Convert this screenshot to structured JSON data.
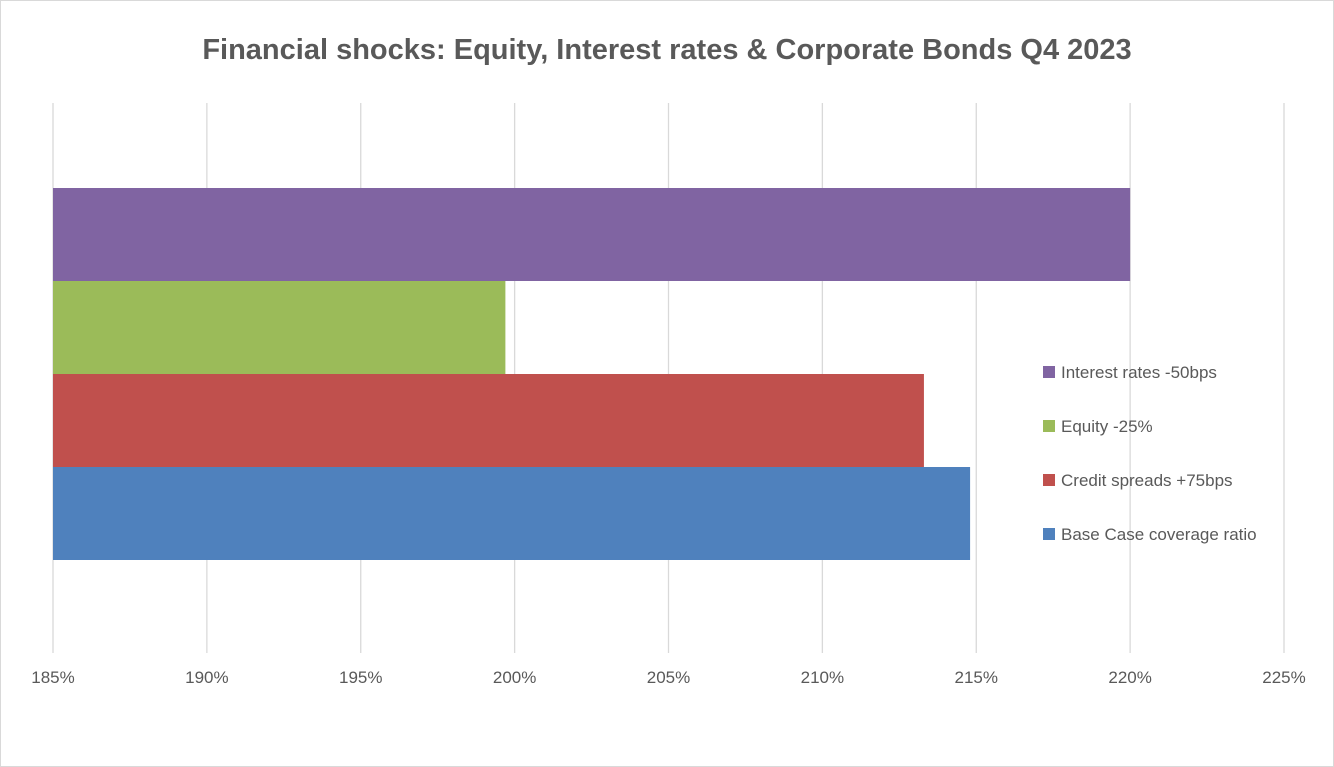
{
  "chart_data": {
    "type": "bar",
    "orientation": "horizontal",
    "title": "Financial shocks: Equity, Interest rates & Corporate Bonds Q4 2023",
    "xlabel": "",
    "ylabel": "",
    "xlim": [
      185,
      225
    ],
    "x_ticks": [
      "185%",
      "190%",
      "195%",
      "200%",
      "205%",
      "210%",
      "215%",
      "220%",
      "225%"
    ],
    "grid": "vertical",
    "legend_position": "right",
    "series": [
      {
        "name": "Base Case coverage ratio",
        "value": 214.8,
        "color": "#4f81bd"
      },
      {
        "name": "Credit spreads +75bps",
        "value": 213.3,
        "color": "#c0504d"
      },
      {
        "name": "Equity -25%",
        "value": 199.7,
        "color": "#9bbb59"
      },
      {
        "name": "Interest rates -50bps",
        "value": 220.0,
        "color": "#8064a2"
      }
    ],
    "legend_order": [
      "Interest rates -50bps",
      "Equity -25%",
      "Credit spreads +75bps",
      "Base Case coverage ratio"
    ]
  }
}
